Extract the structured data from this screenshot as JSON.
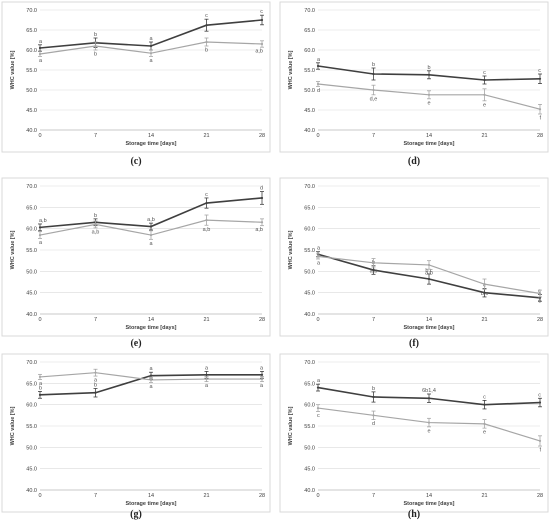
{
  "colors": {
    "dark_series": "#3f3f3f",
    "light_series": "#a6a6a6",
    "grid": "#d9d9d9",
    "frame": "#d9d9d9"
  },
  "chart_data": [
    {
      "type": "line",
      "label": "(c)",
      "xlabel": "Storage time [days]",
      "ylabel": "WHC value [%]",
      "ylim": [
        40,
        70
      ],
      "yticks": [
        "40.0",
        "45.0",
        "50.0",
        "55.0",
        "60.0",
        "65.0",
        "70.0"
      ],
      "x": [
        0,
        7,
        14,
        21,
        28
      ],
      "series": [
        {
          "color": "dark",
          "values": [
            60.5,
            61.8,
            61.0,
            66.2,
            67.5
          ],
          "errors": [
            0.8,
            1.2,
            1.0,
            1.5,
            1.2
          ],
          "letters": [
            "a",
            "b",
            "a",
            "c",
            "c"
          ]
        },
        {
          "color": "light",
          "values": [
            59.0,
            61.0,
            59.2,
            62.0,
            61.5
          ],
          "errors": [
            0.6,
            1.0,
            0.8,
            1.0,
            0.8
          ],
          "letters": [
            "a",
            "b",
            "a",
            "b",
            "a,b"
          ]
        }
      ]
    },
    {
      "type": "line",
      "label": "(d)",
      "xlabel": "Storage time [days]",
      "ylabel": "WHC value [%]",
      "ylim": [
        40,
        70
      ],
      "yticks": [
        "40.0",
        "45.0",
        "50.0",
        "55.0",
        "60.0",
        "65.0",
        "70.0"
      ],
      "x": [
        0,
        7,
        14,
        21,
        28
      ],
      "series": [
        {
          "color": "dark",
          "values": [
            56.0,
            54.0,
            53.8,
            52.5,
            52.8
          ],
          "errors": [
            0.8,
            1.5,
            1.0,
            1.0,
            1.2
          ],
          "letters": [
            "a",
            "b",
            "b",
            "c",
            "c"
          ]
        },
        {
          "color": "light",
          "values": [
            51.5,
            50.0,
            48.8,
            48.8,
            45.2
          ],
          "errors": [
            0.6,
            1.2,
            1.0,
            1.5,
            1.2
          ],
          "letters": [
            "d",
            "d,e",
            "e",
            "e",
            "f"
          ]
        }
      ]
    },
    {
      "type": "line",
      "label": "(e)",
      "xlabel": "Storage time [days]",
      "ylabel": "WHC value [%]",
      "ylim": [
        40,
        70
      ],
      "yticks": [
        "40.0",
        "45.0",
        "50.0",
        "55.0",
        "60.0",
        "65.0",
        "70.0"
      ],
      "x": [
        0,
        7,
        14,
        21,
        28
      ],
      "series": [
        {
          "color": "dark",
          "values": [
            60.3,
            61.5,
            60.5,
            66.0,
            67.2
          ],
          "errors": [
            0.8,
            0.8,
            0.8,
            1.2,
            1.5
          ],
          "letters": [
            "a,b",
            "b",
            "a,b",
            "c",
            "d"
          ]
        },
        {
          "color": "light",
          "values": [
            58.5,
            61.0,
            58.5,
            62.0,
            61.5
          ],
          "errors": [
            0.8,
            0.8,
            1.0,
            1.2,
            0.8
          ],
          "letters": [
            "a",
            "a,b",
            "a",
            "a,b",
            "a,b"
          ]
        }
      ]
    },
    {
      "type": "line",
      "label": "(f)",
      "xlabel": "Storage time [days]",
      "ylabel": "WHC value [%]",
      "ylim": [
        40,
        70
      ],
      "yticks": [
        "40.0",
        "45.0",
        "50.0",
        "55.0",
        "60.0",
        "65.0",
        "70.0"
      ],
      "x": [
        0,
        7,
        14,
        21,
        28
      ],
      "series": [
        {
          "color": "dark",
          "values": [
            54.0,
            50.3,
            48.2,
            45.0,
            43.8
          ],
          "errors": [
            0.6,
            1.0,
            1.2,
            1.0,
            0.8
          ],
          "letters": [
            "a",
            "b",
            "b,c",
            "c",
            "c"
          ]
        },
        {
          "color": "light",
          "values": [
            53.5,
            52.0,
            51.5,
            47.0,
            44.8
          ],
          "errors": [
            0.6,
            1.0,
            1.0,
            1.2,
            0.8
          ],
          "letters": [
            "a",
            "a,b",
            "a,b",
            "b,c",
            "c"
          ]
        }
      ]
    },
    {
      "type": "line",
      "label": "(g)",
      "xlabel": "Storage time [days]",
      "ylabel": "WHC value [%]",
      "ylim": [
        40,
        70
      ],
      "yticks": [
        "40.0",
        "45.0",
        "50.0",
        "55.0",
        "60.0",
        "65.0",
        "70.0"
      ],
      "x": [
        0,
        7,
        14,
        21,
        28
      ],
      "series": [
        {
          "color": "dark",
          "values": [
            62.3,
            62.8,
            66.8,
            67.0,
            67.0
          ],
          "errors": [
            0.8,
            1.0,
            0.8,
            0.8,
            0.8
          ],
          "letters": [
            "b",
            "b",
            "a",
            "a",
            "a"
          ]
        },
        {
          "color": "light",
          "values": [
            66.5,
            67.5,
            65.8,
            66.0,
            66.0
          ],
          "errors": [
            0.6,
            0.8,
            0.6,
            0.6,
            0.6
          ],
          "letters": [
            "a",
            "a",
            "a",
            "a",
            "a"
          ]
        }
      ]
    },
    {
      "type": "line",
      "label": "(h)",
      "xlabel": "Storage time [days]",
      "ylabel": "WHC value [%]",
      "ylim": [
        40,
        70
      ],
      "yticks": [
        "40.0",
        "45.0",
        "50.0",
        "55.0",
        "60.0",
        "65.0",
        "70.0"
      ],
      "x": [
        0,
        7,
        14,
        21,
        28
      ],
      "series": [
        {
          "color": "dark",
          "values": [
            64.0,
            61.8,
            61.5,
            60.0,
            60.5
          ],
          "errors": [
            0.8,
            1.2,
            1.0,
            1.0,
            1.0
          ],
          "letters": [
            "a",
            "b",
            "6b1,4",
            "c",
            "c"
          ]
        },
        {
          "color": "light",
          "values": [
            59.2,
            57.5,
            55.8,
            55.5,
            51.5
          ],
          "errors": [
            0.8,
            1.0,
            1.0,
            1.0,
            1.2
          ],
          "letters": [
            "c",
            "d",
            "e",
            "e",
            "f"
          ]
        }
      ]
    }
  ]
}
